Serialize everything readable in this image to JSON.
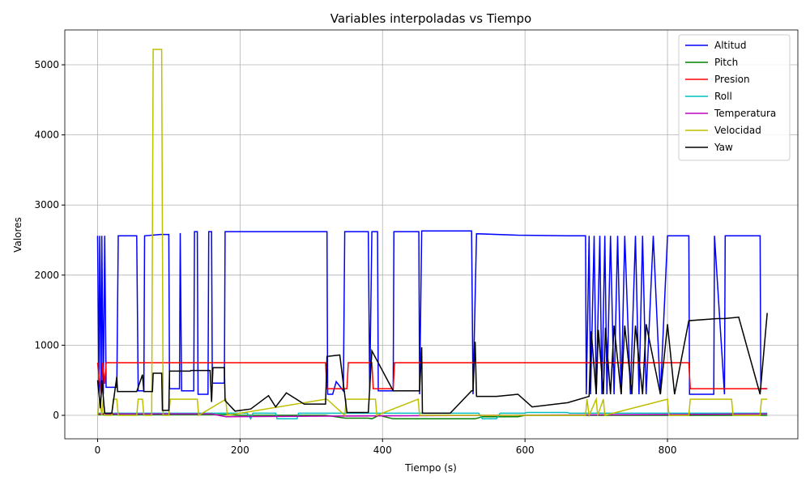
{
  "chart_data": {
    "type": "line",
    "title": "Variables interpoladas vs Tiempo",
    "xlabel": "Tiempo (s)",
    "ylabel": "Valores",
    "xlim": [
      -46,
      983
    ],
    "ylim": [
      -335,
      5497
    ],
    "xticks": [
      0,
      200,
      400,
      600,
      800
    ],
    "yticks": [
      0,
      1000,
      2000,
      3000,
      4000,
      5000
    ],
    "grid": true,
    "legend": "upper right",
    "series": [
      {
        "name": "Altitud",
        "color": "#0000ff",
        "x": [
          0,
          2,
          3,
          5,
          6,
          8,
          10,
          12,
          27,
          29,
          55,
          57,
          65,
          66,
          88,
          100,
          101,
          115,
          116,
          118,
          135,
          136,
          140,
          141,
          155,
          156,
          160,
          161,
          178,
          179,
          322,
          323,
          330,
          335,
          345,
          347,
          380,
          382,
          385,
          393,
          394,
          415,
          416,
          451,
          452,
          455,
          525,
          527,
          532,
          590,
          660,
          685,
          686,
          690,
          692,
          697,
          700,
          705,
          708,
          712,
          715,
          720,
          725,
          730,
          735,
          740,
          748,
          755,
          760,
          765,
          770,
          780,
          790,
          800,
          810,
          830,
          831,
          865,
          866,
          880,
          881,
          890,
          930,
          931,
          940
        ],
        "values": [
          2560,
          300,
          2560,
          400,
          2560,
          300,
          2560,
          400,
          400,
          2560,
          2560,
          350,
          350,
          2560,
          2580,
          2580,
          380,
          380,
          2600,
          350,
          350,
          2620,
          2620,
          300,
          300,
          2620,
          2620,
          460,
          460,
          2620,
          2620,
          300,
          300,
          480,
          350,
          2620,
          2620,
          350,
          2620,
          2620,
          350,
          350,
          2620,
          2620,
          300,
          2630,
          2630,
          300,
          2590,
          2570,
          2560,
          2560,
          300,
          2560,
          300,
          2560,
          300,
          2560,
          300,
          2560,
          300,
          2560,
          300,
          2560,
          300,
          2560,
          300,
          2560,
          300,
          2560,
          300,
          2560,
          300,
          2560,
          2560,
          2560,
          300,
          300,
          2560,
          300,
          2560,
          2560,
          2560,
          380,
          380
        ]
      },
      {
        "name": "Pitch",
        "color": "#008000",
        "x": [
          0,
          180,
          200,
          320,
          348,
          380,
          385,
          395,
          415,
          450,
          470,
          530,
          540,
          590,
          600,
          940
        ],
        "values": [
          10,
          10,
          0,
          0,
          -40,
          -40,
          -50,
          0,
          -50,
          -50,
          -50,
          -50,
          -20,
          -20,
          0,
          0
        ]
      },
      {
        "name": "Presion",
        "color": "#ff0000",
        "x": [
          0,
          5,
          7,
          10,
          12,
          320,
          322,
          350,
          352,
          385,
          387,
          415,
          417,
          830,
          832,
          940
        ],
        "values": [
          750,
          300,
          750,
          450,
          750,
          750,
          380,
          380,
          750,
          750,
          380,
          380,
          750,
          750,
          380,
          380
        ]
      },
      {
        "name": "Roll",
        "color": "#00bfbf",
        "x": [
          0,
          210,
          215,
          218,
          250,
          252,
          280,
          282,
          535,
          540,
          560,
          565,
          600,
          602,
          660,
          662,
          940
        ],
        "values": [
          30,
          30,
          -50,
          30,
          30,
          -50,
          -50,
          30,
          30,
          -50,
          -50,
          30,
          30,
          40,
          40,
          30,
          30
        ]
      },
      {
        "name": "Temperatura",
        "color": "#bf00bf",
        "x": [
          0,
          160,
          180,
          940
        ],
        "values": [
          20,
          20,
          -20,
          20
        ]
      },
      {
        "name": "Velocidad",
        "color": "#bfbf00",
        "x": [
          0,
          3,
          6,
          8,
          10,
          20,
          22,
          27,
          29,
          55,
          57,
          63,
          65,
          76,
          78,
          90,
          92,
          100,
          102,
          140,
          142,
          180,
          182,
          320,
          322,
          347,
          349,
          390,
          392,
          450,
          452,
          685,
          687,
          690,
          700,
          702,
          710,
          712,
          800,
          802,
          830,
          832,
          890,
          892,
          930,
          932,
          940
        ],
        "values": [
          0,
          230,
          0,
          230,
          0,
          0,
          230,
          230,
          0,
          0,
          230,
          230,
          0,
          0,
          5220,
          5220,
          0,
          0,
          230,
          230,
          0,
          230,
          0,
          230,
          230,
          0,
          230,
          230,
          0,
          230,
          0,
          0,
          230,
          0,
          230,
          0,
          230,
          0,
          230,
          0,
          0,
          230,
          230,
          0,
          0,
          230,
          230
        ]
      },
      {
        "name": "Yaw",
        "color": "#000000",
        "x": [
          0,
          4,
          6,
          10,
          20,
          27,
          28,
          55,
          63,
          65,
          77,
          78,
          90,
          91,
          100,
          101,
          130,
          131,
          158,
          160,
          162,
          178,
          179,
          193,
          215,
          240,
          250,
          265,
          290,
          320,
          322,
          340,
          350,
          380,
          385,
          415,
          452,
          455,
          456,
          495,
          525,
          527,
          530,
          532,
          560,
          590,
          610,
          660,
          690,
          693,
          700,
          703,
          710,
          713,
          720,
          725,
          735,
          740,
          750,
          755,
          765,
          770,
          790,
          800,
          810,
          830,
          870,
          880,
          900,
          930,
          940
        ],
        "values": [
          500,
          100,
          500,
          30,
          30,
          550,
          340,
          340,
          580,
          340,
          340,
          600,
          600,
          70,
          70,
          630,
          630,
          640,
          640,
          190,
          680,
          680,
          210,
          60,
          90,
          280,
          120,
          320,
          160,
          160,
          840,
          860,
          40,
          40,
          920,
          350,
          350,
          970,
          30,
          30,
          350,
          350,
          1050,
          270,
          270,
          300,
          120,
          180,
          270,
          1200,
          300,
          1220,
          300,
          1250,
          300,
          1280,
          300,
          1280,
          300,
          1280,
          300,
          1300,
          300,
          1300,
          300,
          1350,
          1380,
          1380,
          1400,
          300,
          1460
        ]
      }
    ]
  }
}
